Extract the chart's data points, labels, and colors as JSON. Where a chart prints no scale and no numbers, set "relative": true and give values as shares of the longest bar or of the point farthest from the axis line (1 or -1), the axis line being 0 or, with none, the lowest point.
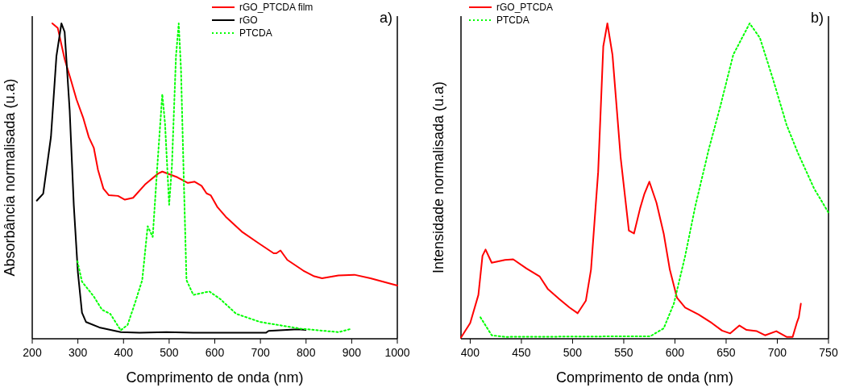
{
  "chart_data": [
    {
      "type": "line",
      "xlabel": "Comprimento de onda (nm)",
      "ylabel": "Absorbância normalisada (u.a)",
      "relative": true,
      "xlim": [
        200,
        1000
      ],
      "xticks": [
        200,
        300,
        400,
        500,
        600,
        700,
        800,
        900,
        1000
      ],
      "legend": "top right",
      "annotations": [
        "a)"
      ],
      "series": [
        {
          "name": "rGO_PTCDA film",
          "color": "#ff0000",
          "line_style": "solid",
          "x": [
            244,
            256,
            271,
            285,
            297,
            312,
            324,
            335,
            344,
            356,
            368,
            388,
            403,
            421,
            447,
            476,
            485,
            518,
            541,
            556,
            571,
            582,
            591,
            606,
            624,
            659,
            694,
            729,
            735,
            744,
            759,
            794,
            818,
            835,
            871,
            906,
            941,
            1000
          ],
          "values": [
            1.0,
            0.985,
            0.887,
            0.819,
            0.759,
            0.699,
            0.639,
            0.605,
            0.536,
            0.476,
            0.455,
            0.453,
            0.441,
            0.447,
            0.489,
            0.524,
            0.53,
            0.512,
            0.494,
            0.498,
            0.485,
            0.461,
            0.455,
            0.417,
            0.387,
            0.34,
            0.305,
            0.271,
            0.271,
            0.28,
            0.25,
            0.216,
            0.198,
            0.192,
            0.201,
            0.203,
            0.192,
            0.169
          ]
        },
        {
          "name": "rGO",
          "color": "#000000",
          "line_style": "solid",
          "x": [
            210,
            224,
            241,
            253,
            264,
            271,
            282,
            291,
            300,
            309,
            318,
            347,
            394,
            435,
            494,
            553,
            712,
            718,
            782,
            799
          ],
          "values": [
            0.438,
            0.46,
            0.64,
            0.896,
            1.0,
            0.973,
            0.725,
            0.425,
            0.211,
            0.083,
            0.053,
            0.036,
            0.021,
            0.019,
            0.021,
            0.019,
            0.019,
            0.025,
            0.03,
            0.028
          ]
        },
        {
          "name": "PTCDA",
          "color": "#00ff00",
          "line_style": "dotted",
          "x": [
            299,
            309,
            335,
            353,
            371,
            394,
            409,
            426,
            441,
            453,
            464,
            474,
            485,
            491,
            500,
            506,
            515,
            521,
            526,
            532,
            538,
            553,
            588,
            612,
            647,
            700,
            788,
            871,
            900
          ],
          "values": [
            0.246,
            0.181,
            0.134,
            0.092,
            0.079,
            0.027,
            0.044,
            0.117,
            0.186,
            0.357,
            0.323,
            0.545,
            0.776,
            0.682,
            0.425,
            0.545,
            0.896,
            1.0,
            0.853,
            0.511,
            0.186,
            0.139,
            0.15,
            0.126,
            0.079,
            0.053,
            0.032,
            0.021,
            0.032
          ]
        }
      ]
    },
    {
      "type": "line",
      "xlabel": "Comprimento de onda (nm)",
      "ylabel": "Intensidade normalisada (u.a)",
      "relative": true,
      "xlim": [
        391,
        750
      ],
      "xticks": [
        400,
        450,
        500,
        550,
        600,
        650,
        700,
        750
      ],
      "legend": "top left",
      "annotations": [
        "b)"
      ],
      "series": [
        {
          "name": "rGO_PTCDA",
          "color": "#ff0000",
          "line_style": "solid",
          "x": [
            391,
            400,
            408,
            412,
            415,
            421,
            434,
            442,
            455,
            468,
            476,
            487,
            497,
            505,
            513,
            518,
            525,
            530,
            534,
            539,
            547,
            555,
            560,
            566,
            570,
            575,
            582,
            589,
            595,
            602,
            610,
            623,
            636,
            646,
            654,
            663,
            670,
            680,
            688,
            699,
            709,
            715,
            719,
            721,
            723
          ],
          "values": [
            0.004,
            0.05,
            0.139,
            0.263,
            0.283,
            0.241,
            0.25,
            0.252,
            0.223,
            0.197,
            0.157,
            0.126,
            0.099,
            0.081,
            0.121,
            0.219,
            0.529,
            0.927,
            1.0,
            0.9,
            0.573,
            0.343,
            0.334,
            0.414,
            0.458,
            0.498,
            0.431,
            0.334,
            0.219,
            0.13,
            0.099,
            0.077,
            0.05,
            0.026,
            0.017,
            0.042,
            0.028,
            0.024,
            0.011,
            0.024,
            0.006,
            0.006,
            0.05,
            0.068,
            0.111
          ]
        },
        {
          "name": "PTCDA",
          "color": "#00ff00",
          "line_style": "dotted",
          "x": [
            410,
            421,
            434,
            576,
            589,
            599,
            610,
            620,
            633,
            644,
            657,
            673,
            683,
            696,
            709,
            720,
            736,
            750
          ],
          "values": [
            0.068,
            0.011,
            0.006,
            0.008,
            0.033,
            0.112,
            0.263,
            0.422,
            0.6,
            0.733,
            0.901,
            1.0,
            0.954,
            0.821,
            0.679,
            0.59,
            0.476,
            0.4
          ]
        }
      ]
    }
  ]
}
